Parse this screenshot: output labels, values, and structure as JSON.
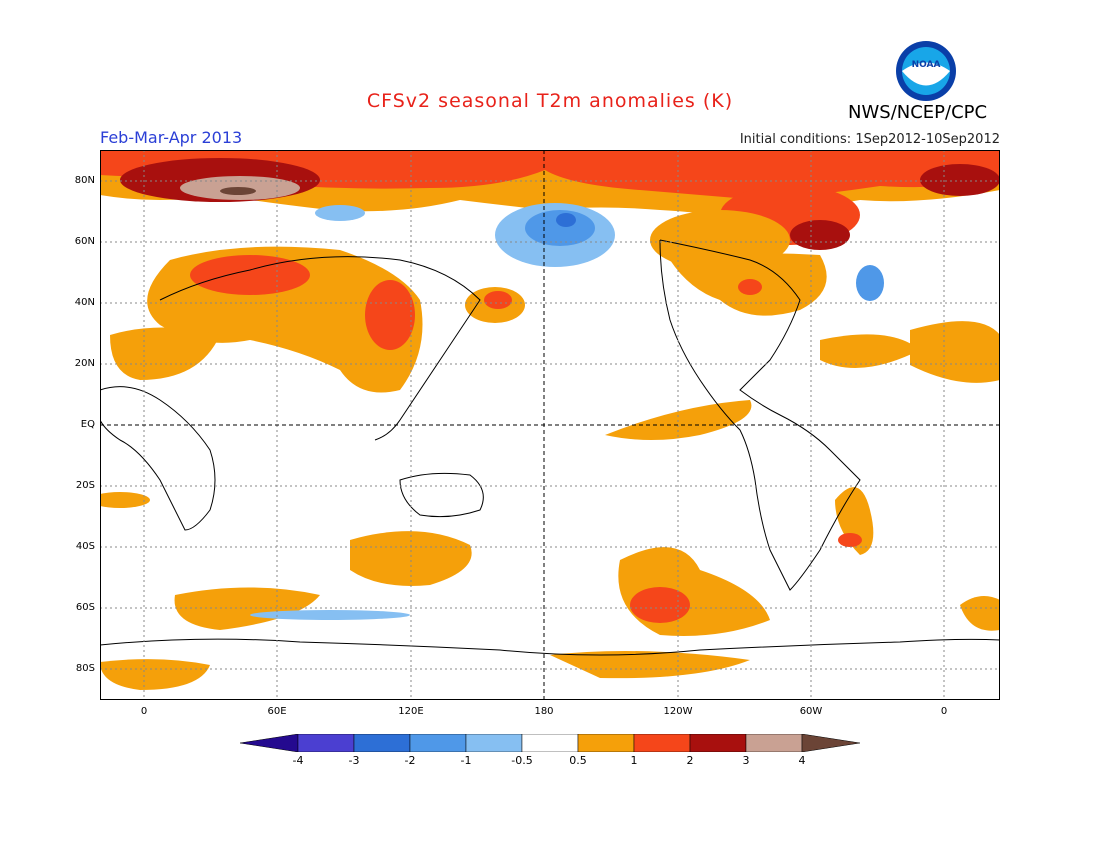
{
  "header": {
    "title": "CFSv2 seasonal T2m anomalies (K)",
    "period": "Feb-Mar-Apr 2013",
    "initial_conditions": "Initial conditions: 1Sep2012-10Sep2012",
    "organization": "NWS/NCEP/CPC",
    "logo_text": "NOAA"
  },
  "axes": {
    "lat_labels": [
      "80N",
      "60N",
      "40N",
      "20N",
      "EQ",
      "20S",
      "40S",
      "60S",
      "80S"
    ],
    "lon_labels": [
      "0",
      "60E",
      "120E",
      "180",
      "120W",
      "60W",
      "0"
    ]
  },
  "colorbar": {
    "labels": [
      "-4",
      "-3",
      "-2",
      "-1",
      "-0.5",
      "0.5",
      "1",
      "2",
      "3",
      "4"
    ],
    "colors": [
      "#240a8f",
      "#4b3fd1",
      "#2d6fd6",
      "#4f98e8",
      "#86bff2",
      "#ffffff",
      "#f5a00a",
      "#f5461a",
      "#a8100e",
      "#c9a193",
      "#6b4436"
    ]
  }
}
